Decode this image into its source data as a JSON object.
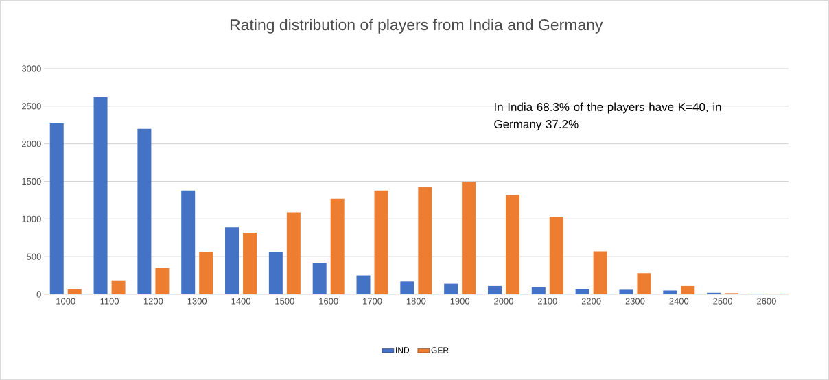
{
  "chart_data": {
    "type": "bar",
    "title": "Rating distribution of players from India and Germany",
    "categories": [
      "1000",
      "1100",
      "1200",
      "1300",
      "1400",
      "1500",
      "1600",
      "1700",
      "1800",
      "1900",
      "2000",
      "2100",
      "2200",
      "2300",
      "2400",
      "2500",
      "2600"
    ],
    "series": [
      {
        "name": "IND",
        "color": "#4472c4",
        "values": [
          2270,
          2620,
          2200,
          1380,
          890,
          560,
          420,
          250,
          170,
          140,
          110,
          95,
          70,
          60,
          50,
          20,
          5
        ]
      },
      {
        "name": "GER",
        "color": "#ed7d31",
        "values": [
          65,
          185,
          350,
          560,
          820,
          1090,
          1270,
          1380,
          1430,
          1490,
          1320,
          1030,
          570,
          280,
          110,
          15,
          5
        ]
      }
    ],
    "ylim": [
      0,
      3000
    ],
    "yticks": [
      0,
      500,
      1000,
      1500,
      2000,
      2500,
      3000
    ],
    "grid": "y",
    "legend": "bottom",
    "annotations": [
      "In India 68.3% of the players have K=40, in Germany 37.2%"
    ]
  }
}
